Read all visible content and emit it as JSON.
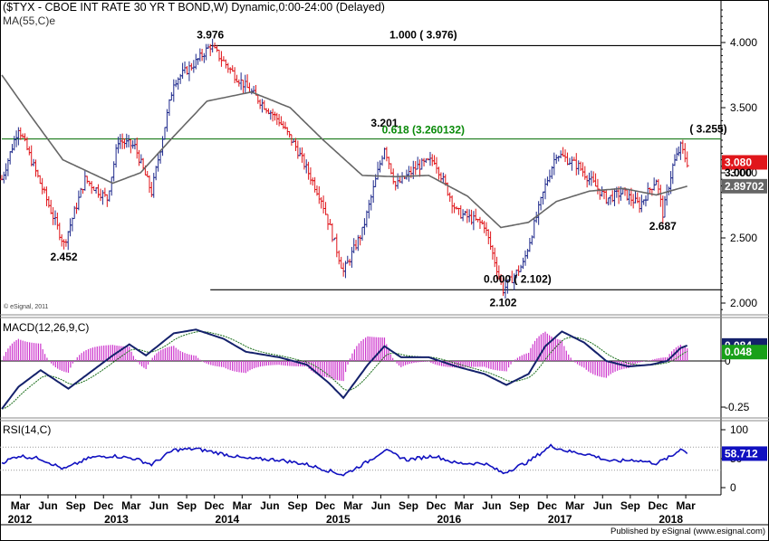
{
  "title": "($TYX - CBOE INT RATE 30 YR T BOND,W) Dynamic,0:00-24:00 (Delayed)",
  "ma_label": "MA(55,C)e",
  "macd_label": "MACD(12,26,9,C)",
  "rsi_label": "RSI(14,C)",
  "copyright": "© eSignal, 2011",
  "footer": "Published by eSignal (www.esignal.com)",
  "colors": {
    "price_up": "#1f2a8c",
    "price_down": "#e0161b",
    "ma": "#666666",
    "fib_line": "#1a7a1a",
    "fib_text": "#0a8a0a",
    "macd_line": "#14216b",
    "macd_signal": "#1a6e1a",
    "macd_hist": "#cc33cc",
    "rsi_line": "#1010c0",
    "last_price_badge": "#e0161b",
    "ma_badge": "#666666",
    "macd_badge": "#19a019",
    "macd_badge2": "#14216b",
    "rsi_badge": "#1010c0"
  },
  "chart_data": [
    {
      "type": "line",
      "name": "price",
      "x_labels": [
        "Mar",
        "Jun",
        "Sep",
        "Dec",
        "Mar",
        "Jun",
        "Sep",
        "Dec",
        "Mar",
        "Jun",
        "Sep",
        "Dec",
        "Mar",
        "Jun",
        "Sep",
        "Dec",
        "Mar",
        "Jun",
        "Sep",
        "Dec",
        "Mar",
        "Jun",
        "Sep",
        "Dec",
        "Mar"
      ],
      "year_labels": [
        "2012",
        "2013",
        "2014",
        "2015",
        "2016",
        "2017",
        "2018"
      ],
      "y_ticks": [
        "4.000",
        "3.500",
        "3.000",
        "2.500",
        "2.000"
      ],
      "ylim": [
        1.9,
        4.3
      ],
      "anchors": [
        {
          "x": 2012.0,
          "y": 2.95
        },
        {
          "x": 2012.15,
          "y": 3.35
        },
        {
          "x": 2012.56,
          "y": 2.452
        },
        {
          "x": 2012.75,
          "y": 2.95
        },
        {
          "x": 2012.95,
          "y": 2.8
        },
        {
          "x": 2013.05,
          "y": 3.25
        },
        {
          "x": 2013.2,
          "y": 3.2
        },
        {
          "x": 2013.35,
          "y": 2.85
        },
        {
          "x": 2013.55,
          "y": 3.7
        },
        {
          "x": 2013.75,
          "y": 3.85
        },
        {
          "x": 2013.88,
          "y": 3.976
        },
        {
          "x": 2014.1,
          "y": 3.75
        },
        {
          "x": 2014.5,
          "y": 3.4
        },
        {
          "x": 2014.65,
          "y": 3.2
        },
        {
          "x": 2014.88,
          "y": 2.8
        },
        {
          "x": 2015.08,
          "y": 2.24
        },
        {
          "x": 2015.25,
          "y": 2.55
        },
        {
          "x": 2015.45,
          "y": 3.201
        },
        {
          "x": 2015.55,
          "y": 2.9
        },
        {
          "x": 2015.75,
          "y": 3.05
        },
        {
          "x": 2015.9,
          "y": 3.1
        },
        {
          "x": 2016.1,
          "y": 2.7
        },
        {
          "x": 2016.35,
          "y": 2.6
        },
        {
          "x": 2016.52,
          "y": 2.102
        },
        {
          "x": 2016.7,
          "y": 2.3
        },
        {
          "x": 2016.9,
          "y": 2.9
        },
        {
          "x": 2017.0,
          "y": 3.15
        },
        {
          "x": 2017.2,
          "y": 3.05
        },
        {
          "x": 2017.45,
          "y": 2.8
        },
        {
          "x": 2017.6,
          "y": 2.85
        },
        {
          "x": 2017.75,
          "y": 2.75
        },
        {
          "x": 2017.9,
          "y": 2.95
        },
        {
          "x": 2017.96,
          "y": 2.687
        },
        {
          "x": 2018.05,
          "y": 3.05
        },
        {
          "x": 2018.12,
          "y": 3.2
        },
        {
          "x": 2018.18,
          "y": 3.08
        }
      ],
      "ma_anchors": [
        {
          "x": 2012.0,
          "y": 3.75
        },
        {
          "x": 2012.25,
          "y": 3.45
        },
        {
          "x": 2012.55,
          "y": 3.1
        },
        {
          "x": 2013.0,
          "y": 2.92
        },
        {
          "x": 2013.25,
          "y": 3.0
        },
        {
          "x": 2013.55,
          "y": 3.28
        },
        {
          "x": 2013.85,
          "y": 3.55
        },
        {
          "x": 2014.25,
          "y": 3.62
        },
        {
          "x": 2014.6,
          "y": 3.5
        },
        {
          "x": 2014.9,
          "y": 3.25
        },
        {
          "x": 2015.25,
          "y": 2.98
        },
        {
          "x": 2015.55,
          "y": 2.97
        },
        {
          "x": 2015.85,
          "y": 2.98
        },
        {
          "x": 2016.2,
          "y": 2.82
        },
        {
          "x": 2016.5,
          "y": 2.58
        },
        {
          "x": 2016.75,
          "y": 2.62
        },
        {
          "x": 2017.0,
          "y": 2.78
        },
        {
          "x": 2017.3,
          "y": 2.86
        },
        {
          "x": 2017.6,
          "y": 2.88
        },
        {
          "x": 2017.9,
          "y": 2.83
        },
        {
          "x": 2018.18,
          "y": 2.897
        }
      ],
      "annotations": [
        {
          "text": "3.976",
          "x": 2013.88,
          "y": 3.976,
          "pos": "above"
        },
        {
          "text": "1.000 ( 3.976)",
          "x": 2015.8,
          "y": 3.976,
          "pos": "above"
        },
        {
          "text": "3.201",
          "x": 2015.45,
          "y": 3.201,
          "pos": "abovefar"
        },
        {
          "text": "0.618 (3.260132)",
          "x": 2015.8,
          "y": 3.260132,
          "pos": "above-green"
        },
        {
          "text": "( 3.255)",
          "x": 2018.37,
          "y": 3.255,
          "pos": "above"
        },
        {
          "text": "2.452",
          "x": 2012.56,
          "y": 2.452,
          "pos": "below"
        },
        {
          "text": "0.000 ( 2.102)",
          "x": 2016.65,
          "y": 2.102,
          "pos": "above"
        },
        {
          "text": "2.102",
          "x": 2016.52,
          "y": 2.102,
          "pos": "below"
        },
        {
          "text": "2.687",
          "x": 2017.96,
          "y": 2.687,
          "pos": "below"
        }
      ],
      "hlines": [
        {
          "y": 3.976,
          "x_start": 2013.88,
          "color": "black"
        },
        {
          "y": 3.260132,
          "x_start": 2012.0,
          "color": "green"
        },
        {
          "y": 2.102,
          "x_start": 2013.88,
          "color": "black"
        }
      ],
      "badges": [
        {
          "text": "3.080",
          "y": 3.08,
          "color": "last_price_badge"
        },
        {
          "text": "3.000",
          "y": 3.0,
          "color": "none"
        },
        {
          "text": "2.89702",
          "y": 2.897,
          "color": "ma_badge"
        }
      ]
    },
    {
      "type": "line",
      "name": "MACD(12,26,9,C)",
      "y_ticks": [
        "0",
        "-0.25"
      ],
      "ylim": [
        -0.32,
        0.22
      ],
      "macd_anchors": [
        {
          "x": 2012.0,
          "y": -0.26
        },
        {
          "x": 2012.15,
          "y": -0.14
        },
        {
          "x": 2012.35,
          "y": -0.05
        },
        {
          "x": 2012.6,
          "y": -0.15
        },
        {
          "x": 2012.8,
          "y": -0.06
        },
        {
          "x": 2013.0,
          "y": 0.03
        },
        {
          "x": 2013.15,
          "y": 0.09
        },
        {
          "x": 2013.3,
          "y": 0.03
        },
        {
          "x": 2013.55,
          "y": 0.15
        },
        {
          "x": 2013.75,
          "y": 0.17
        },
        {
          "x": 2014.0,
          "y": 0.12
        },
        {
          "x": 2014.2,
          "y": 0.05
        },
        {
          "x": 2014.5,
          "y": 0.02
        },
        {
          "x": 2014.75,
          "y": -0.02
        },
        {
          "x": 2014.95,
          "y": -0.12
        },
        {
          "x": 2015.08,
          "y": -0.2
        },
        {
          "x": 2015.3,
          "y": -0.02
        },
        {
          "x": 2015.45,
          "y": 0.08
        },
        {
          "x": 2015.6,
          "y": 0.02
        },
        {
          "x": 2015.85,
          "y": 0.02
        },
        {
          "x": 2016.1,
          "y": -0.03
        },
        {
          "x": 2016.35,
          "y": -0.07
        },
        {
          "x": 2016.55,
          "y": -0.13
        },
        {
          "x": 2016.75,
          "y": -0.07
        },
        {
          "x": 2016.9,
          "y": 0.08
        },
        {
          "x": 2017.05,
          "y": 0.16
        },
        {
          "x": 2017.25,
          "y": 0.1
        },
        {
          "x": 2017.45,
          "y": 0.0
        },
        {
          "x": 2017.65,
          "y": -0.03
        },
        {
          "x": 2017.85,
          "y": -0.02
        },
        {
          "x": 2018.0,
          "y": 0.0
        },
        {
          "x": 2018.12,
          "y": 0.07
        },
        {
          "x": 2018.18,
          "y": 0.084
        }
      ],
      "signal_value": 0.048,
      "badges": [
        {
          "text": "0.084",
          "y": 0.084,
          "color": "macd_badge2"
        },
        {
          "text": "0.048",
          "y": 0.048,
          "color": "macd_badge"
        }
      ]
    },
    {
      "type": "line",
      "name": "RSI(14,C)",
      "y_ticks": [
        "100",
        "50",
        "0"
      ],
      "ylim": [
        0,
        100
      ],
      "guide_levels": [
        70,
        30
      ],
      "rsi_anchors": [
        {
          "x": 2012.0,
          "y": 43
        },
        {
          "x": 2012.15,
          "y": 55
        },
        {
          "x": 2012.35,
          "y": 50
        },
        {
          "x": 2012.56,
          "y": 32
        },
        {
          "x": 2012.8,
          "y": 52
        },
        {
          "x": 2013.0,
          "y": 55
        },
        {
          "x": 2013.2,
          "y": 50
        },
        {
          "x": 2013.35,
          "y": 40
        },
        {
          "x": 2013.55,
          "y": 65
        },
        {
          "x": 2013.75,
          "y": 67
        },
        {
          "x": 2013.95,
          "y": 60
        },
        {
          "x": 2014.2,
          "y": 50
        },
        {
          "x": 2014.5,
          "y": 48
        },
        {
          "x": 2014.75,
          "y": 40
        },
        {
          "x": 2015.08,
          "y": 22
        },
        {
          "x": 2015.3,
          "y": 45
        },
        {
          "x": 2015.45,
          "y": 65
        },
        {
          "x": 2015.65,
          "y": 48
        },
        {
          "x": 2015.9,
          "y": 55
        },
        {
          "x": 2016.1,
          "y": 42
        },
        {
          "x": 2016.35,
          "y": 42
        },
        {
          "x": 2016.52,
          "y": 25
        },
        {
          "x": 2016.75,
          "y": 45
        },
        {
          "x": 2016.95,
          "y": 72
        },
        {
          "x": 2017.1,
          "y": 63
        },
        {
          "x": 2017.3,
          "y": 57
        },
        {
          "x": 2017.5,
          "y": 45
        },
        {
          "x": 2017.7,
          "y": 48
        },
        {
          "x": 2017.9,
          "y": 42
        },
        {
          "x": 2018.05,
          "y": 55
        },
        {
          "x": 2018.12,
          "y": 68
        },
        {
          "x": 2018.18,
          "y": 58.712
        }
      ],
      "badges": [
        {
          "text": "58.712",
          "y": 58.712,
          "color": "rsi_badge"
        }
      ]
    }
  ]
}
